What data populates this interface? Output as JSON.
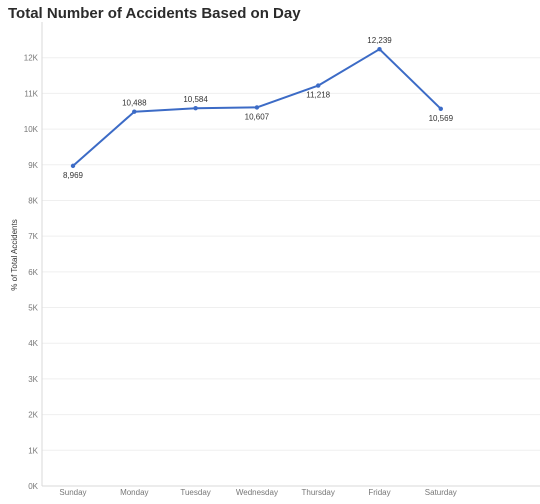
{
  "chart_data": {
    "type": "line",
    "title": "Total Number of Accidents Based on Day",
    "xlabel": "",
    "ylabel": "% of Total Accidents",
    "categories": [
      "Sunday",
      "Monday",
      "Tuesday",
      "Wednesday",
      "Thursday",
      "Friday",
      "Saturday"
    ],
    "values": [
      8969,
      10488,
      10584,
      10607,
      11218,
      12239,
      10569
    ],
    "value_labels": [
      "8,969",
      "10,488",
      "10,584",
      "10,607",
      "11,218",
      "12,239",
      "10,569"
    ],
    "ylim": [
      0,
      13000
    ],
    "yticks": [
      0,
      1000,
      2000,
      3000,
      4000,
      5000,
      6000,
      7000,
      8000,
      9000,
      10000,
      11000,
      12000
    ],
    "ytick_labels": [
      "0K",
      "1K",
      "2K",
      "3K",
      "4K",
      "5K",
      "6K",
      "7K",
      "8K",
      "9K",
      "10K",
      "11K",
      "12K"
    ],
    "grid": true,
    "line_color": "#3c6bc6"
  }
}
